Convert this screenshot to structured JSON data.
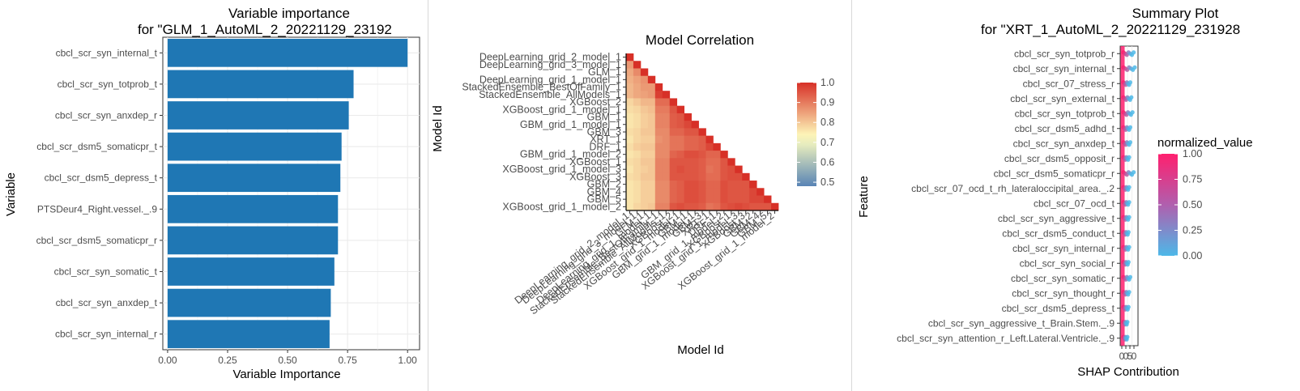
{
  "colors": {
    "bar": "#1f77b4",
    "grid": "#ebebeb",
    "axis": "#4d4d4d",
    "shap_low": "#4db8e8",
    "shap_high": "#ff1f6e",
    "corr_low": "#4575b4",
    "corr_mid": "#ffffbf",
    "corr_high": "#d73027"
  },
  "chart_data": [
    {
      "type": "bar",
      "orientation": "horizontal",
      "title": "Variable importance",
      "subtitle": "for \"GLM_1_AutoML_2_20221129_23192",
      "xlabel": "Variable Importance",
      "ylabel": "Variable",
      "xlim": [
        -0.02,
        1.05
      ],
      "xticks": [
        "0.00",
        "0.25",
        "0.50",
        "0.75",
        "1.00"
      ],
      "grid": true,
      "categories": [
        "cbcl_scr_syn_internal_t",
        "cbcl_scr_syn_totprob_t",
        "cbcl_scr_syn_anxdep_r",
        "cbcl_scr_dsm5_somaticpr_t",
        "cbcl_scr_dsm5_depress_t",
        "PTSDeur4_Right.vessel._.9",
        "cbcl_scr_dsm5_somaticpr_r",
        "cbcl_scr_syn_somatic_t",
        "cbcl_scr_syn_anxdep_t",
        "cbcl_scr_syn_internal_r"
      ],
      "values": [
        1.0,
        0.775,
        0.755,
        0.725,
        0.72,
        0.71,
        0.71,
        0.695,
        0.68,
        0.675
      ]
    },
    {
      "type": "heatmap",
      "title": "Model Correlation",
      "xlabel": "Model Id",
      "ylabel": "Model Id",
      "models": [
        "DeepLearning_grid_2_model_1",
        "DeepLearning_grid_3_model_1",
        "GLM_1",
        "DeepLearning_grid_1_model_1",
        "StackedEnsemble_BestOfFamily_1",
        "StackedEnsemble_AllModels_1",
        "XGBoost_2",
        "XGBoost_grid_1_model_1",
        "GBM_1",
        "GBM_grid_1_model_1",
        "GBM_3",
        "XRT_1",
        "DRF_1",
        "GBM_grid_1_model_2",
        "XGBoost_1",
        "XGBoost_grid_1_model_3",
        "XGBoost_3",
        "GBM_2",
        "GBM_4",
        "GBM_5",
        "XGBoost_grid_1_model_2"
      ],
      "legend_ticks": [
        "1.0",
        "0.9",
        "0.8",
        "0.7",
        "0.6",
        "0.5"
      ],
      "color_range": [
        0.45,
        1.0
      ],
      "values": [
        [
          1.0
        ],
        [
          0.86,
          1.0
        ],
        [
          0.84,
          0.88,
          1.0
        ],
        [
          0.83,
          0.85,
          0.87,
          1.0
        ],
        [
          0.82,
          0.84,
          0.86,
          0.86,
          1.0
        ],
        [
          0.82,
          0.84,
          0.85,
          0.86,
          0.98,
          1.0
        ],
        [
          0.78,
          0.8,
          0.82,
          0.82,
          0.92,
          0.92,
          1.0
        ],
        [
          0.77,
          0.78,
          0.8,
          0.81,
          0.9,
          0.9,
          0.95,
          1.0
        ],
        [
          0.76,
          0.77,
          0.79,
          0.8,
          0.89,
          0.89,
          0.94,
          0.95,
          1.0
        ],
        [
          0.76,
          0.77,
          0.79,
          0.8,
          0.89,
          0.89,
          0.94,
          0.95,
          0.97,
          1.0
        ],
        [
          0.77,
          0.78,
          0.8,
          0.8,
          0.88,
          0.88,
          0.93,
          0.93,
          0.95,
          0.95,
          1.0
        ],
        [
          0.76,
          0.78,
          0.79,
          0.79,
          0.87,
          0.88,
          0.91,
          0.91,
          0.93,
          0.93,
          0.94,
          1.0
        ],
        [
          0.77,
          0.79,
          0.8,
          0.8,
          0.88,
          0.88,
          0.91,
          0.91,
          0.93,
          0.93,
          0.94,
          0.97,
          1.0
        ],
        [
          0.76,
          0.77,
          0.79,
          0.79,
          0.88,
          0.88,
          0.93,
          0.94,
          0.96,
          0.96,
          0.95,
          0.93,
          0.93,
          1.0
        ],
        [
          0.77,
          0.78,
          0.8,
          0.8,
          0.89,
          0.89,
          0.95,
          0.95,
          0.95,
          0.95,
          0.94,
          0.92,
          0.92,
          0.95,
          1.0
        ],
        [
          0.76,
          0.78,
          0.79,
          0.8,
          0.89,
          0.89,
          0.95,
          0.96,
          0.95,
          0.95,
          0.94,
          0.91,
          0.92,
          0.95,
          0.96,
          1.0
        ],
        [
          0.77,
          0.78,
          0.8,
          0.8,
          0.89,
          0.89,
          0.95,
          0.95,
          0.95,
          0.95,
          0.94,
          0.92,
          0.92,
          0.95,
          0.96,
          0.96,
          1.0
        ],
        [
          0.76,
          0.77,
          0.79,
          0.79,
          0.88,
          0.88,
          0.93,
          0.94,
          0.96,
          0.96,
          0.95,
          0.93,
          0.93,
          0.96,
          0.95,
          0.95,
          0.95,
          1.0
        ],
        [
          0.76,
          0.77,
          0.79,
          0.79,
          0.88,
          0.88,
          0.93,
          0.94,
          0.96,
          0.96,
          0.95,
          0.93,
          0.93,
          0.96,
          0.95,
          0.95,
          0.95,
          0.97,
          1.0
        ],
        [
          0.76,
          0.77,
          0.79,
          0.79,
          0.88,
          0.88,
          0.93,
          0.94,
          0.96,
          0.96,
          0.95,
          0.93,
          0.93,
          0.96,
          0.95,
          0.95,
          0.95,
          0.97,
          0.97,
          1.0
        ],
        [
          0.76,
          0.78,
          0.79,
          0.8,
          0.89,
          0.89,
          0.95,
          0.96,
          0.95,
          0.95,
          0.94,
          0.91,
          0.92,
          0.95,
          0.96,
          0.97,
          0.96,
          0.95,
          0.95,
          0.95,
          1.0
        ]
      ]
    },
    {
      "type": "scatter",
      "subtype": "shap-summary",
      "title": "Summary Plot",
      "subtitle": "for \"XRT_1_AutoML_2_20221129_231928",
      "xlabel": "SHAP Contribution",
      "ylabel": "Feature",
      "xtick_labels": [
        "0",
        "0",
        "5",
        "0"
      ],
      "legend_title": "normalized_value",
      "legend_ticks": [
        "1.00",
        "0.75",
        "0.50",
        "0.25",
        "0.00"
      ],
      "features": [
        "cbcl_scr_syn_totprob_r",
        "cbcl_scr_syn_internal_t",
        "cbcl_scr_07_stress_r",
        "cbcl_scr_syn_external_t",
        "cbcl_scr_syn_totprob_t",
        "cbcl_scr_dsm5_adhd_t",
        "cbcl_scr_syn_anxdep_t",
        "cbcl_scr_dsm5_opposit_r",
        "cbcl_scr_dsm5_somaticpr_r",
        "cbcl_scr_07_ocd_t_rh_lateraloccipital_area._.2",
        "cbcl_scr_07_ocd_t",
        "cbcl_scr_syn_aggressive_t",
        "cbcl_scr_dsm5_conduct_t",
        "cbcl_scr_syn_internal_r",
        "cbcl_scr_syn_social_r",
        "cbcl_scr_syn_somatic_r",
        "cbcl_scr_syn_thought_r",
        "cbcl_scr_dsm5_depress_t",
        "cbcl_scr_syn_aggressive_t_Brain.Stem._.9",
        "cbcl_scr_syn_attention_r_Left.Lateral.Ventricle._.9"
      ],
      "spread": [
        0.9,
        1.0,
        0.6,
        0.7,
        0.8,
        0.6,
        0.6,
        0.5,
        0.9,
        0.5,
        0.5,
        0.5,
        0.45,
        0.5,
        0.45,
        0.6,
        0.5,
        0.45,
        0.35,
        0.35
      ]
    }
  ]
}
